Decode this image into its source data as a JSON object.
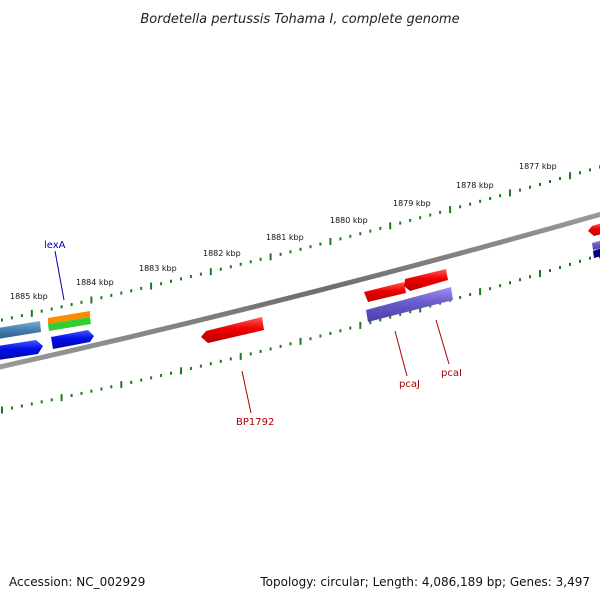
{
  "title": "Bordetella pertussis Tohama I, complete genome",
  "footer": {
    "accession": "Accession: NC_002929",
    "topology": "Topology: circular; Length: 4,086,189 bp; Genes: 3,497"
  },
  "colors": {
    "backbone": "#7a7a7a",
    "ticks": "#1e7a1e",
    "red_gene": "#ee0000",
    "blue_gene": "#0010e8",
    "purple_gene": "#6a5acd",
    "steel_gene": "#4682b4",
    "orange_gene": "#ff8c00",
    "green_gene": "#32cd32",
    "label_blue": "#0000aa",
    "label_red": "#aa0000"
  },
  "ticks": [
    {
      "label": "1885 kbp"
    },
    {
      "label": "1884 kbp"
    },
    {
      "label": "1883 kbp"
    },
    {
      "label": "1882 kbp"
    },
    {
      "label": "1881 kbp"
    },
    {
      "label": "1880 kbp"
    },
    {
      "label": "1879 kbp"
    },
    {
      "label": "1878 kbp"
    },
    {
      "label": "1877 kbp"
    }
  ],
  "gene_labels": {
    "lexA": "lexA",
    "BP1792": "BP1792",
    "pcaJ": "pcaJ",
    "pcaI": "pcaI"
  }
}
